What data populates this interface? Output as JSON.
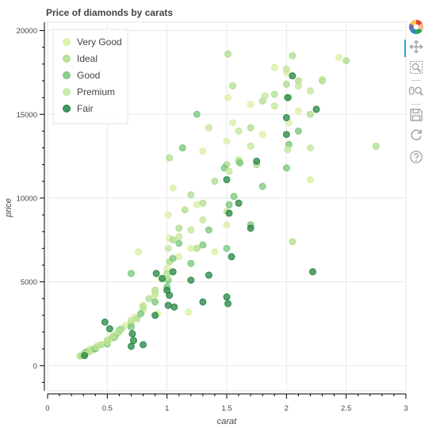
{
  "chart_data": {
    "type": "scatter",
    "title": "Price of diamonds by carats",
    "xlabel": "carat",
    "ylabel": "price",
    "xlim": [
      0,
      3
    ],
    "ylim": [
      -1500,
      20500
    ],
    "x_ticks": [
      0,
      0.5,
      1,
      1.5,
      2,
      2.5,
      3
    ],
    "x_tick_labels": [
      "0",
      "0.5",
      "1",
      "1.5",
      "2",
      "2.5",
      "3"
    ],
    "y_ticks": [
      0,
      5000,
      10000,
      15000,
      20000
    ],
    "y_tick_labels": [
      "0",
      "5000",
      "10000",
      "15000",
      "20000"
    ],
    "grid": true,
    "legend_position": "top-left",
    "series": [
      {
        "name": "Very Good",
        "color": "#d9f0a3",
        "points": [
          [
            0.27,
            550
          ],
          [
            0.3,
            650
          ],
          [
            0.31,
            720
          ],
          [
            0.33,
            800
          ],
          [
            0.35,
            900
          ],
          [
            0.36,
            1000
          ],
          [
            0.4,
            1050
          ],
          [
            0.42,
            1200
          ],
          [
            0.5,
            1450
          ],
          [
            0.52,
            1600
          ],
          [
            0.55,
            1800
          ],
          [
            0.6,
            2000
          ],
          [
            0.65,
            2400
          ],
          [
            0.7,
            2600
          ],
          [
            0.73,
            2900
          ],
          [
            0.76,
            6800
          ],
          [
            0.8,
            3300
          ],
          [
            0.9,
            4200
          ],
          [
            0.95,
            5200
          ],
          [
            1.0,
            5800
          ],
          [
            1.01,
            9000
          ],
          [
            1.05,
            10600
          ],
          [
            1.1,
            6500
          ],
          [
            1.2,
            7000
          ],
          [
            1.25,
            9600
          ],
          [
            1.3,
            12800
          ],
          [
            1.4,
            6800
          ],
          [
            1.5,
            13400
          ],
          [
            1.51,
            16000
          ],
          [
            1.55,
            14500
          ],
          [
            1.6,
            12300
          ],
          [
            1.7,
            15600
          ],
          [
            1.8,
            13800
          ],
          [
            1.9,
            17800
          ],
          [
            2.0,
            17500
          ],
          [
            2.02,
            14500
          ],
          [
            2.1,
            15200
          ],
          [
            2.2,
            11100
          ],
          [
            2.3,
            17100
          ],
          [
            2.44,
            18400
          ],
          [
            1.5,
            8400
          ],
          [
            1.02,
            7600
          ],
          [
            0.92,
            3100
          ],
          [
            1.18,
            3200
          ]
        ]
      },
      {
        "name": "Ideal",
        "color": "#addd8e",
        "points": [
          [
            0.28,
            600
          ],
          [
            0.3,
            700
          ],
          [
            0.32,
            760
          ],
          [
            0.34,
            850
          ],
          [
            0.38,
            950
          ],
          [
            0.41,
            1100
          ],
          [
            0.45,
            1250
          ],
          [
            0.5,
            1500
          ],
          [
            0.54,
            1650
          ],
          [
            0.58,
            1900
          ],
          [
            0.62,
            2200
          ],
          [
            0.7,
            2500
          ],
          [
            0.75,
            2800
          ],
          [
            0.8,
            3500
          ],
          [
            0.85,
            4000
          ],
          [
            0.9,
            4500
          ],
          [
            1.0,
            5500
          ],
          [
            1.02,
            6200
          ],
          [
            1.05,
            7500
          ],
          [
            1.1,
            8200
          ],
          [
            1.15,
            9300
          ],
          [
            1.2,
            10200
          ],
          [
            1.3,
            9700
          ],
          [
            1.4,
            11000
          ],
          [
            1.5,
            12000
          ],
          [
            1.51,
            18600
          ],
          [
            1.55,
            16700
          ],
          [
            1.6,
            12200
          ],
          [
            1.7,
            14200
          ],
          [
            1.8,
            15800
          ],
          [
            1.9,
            16200
          ],
          [
            2.0,
            16800
          ],
          [
            2.05,
            18500
          ],
          [
            2.1,
            17000
          ],
          [
            2.2,
            15000
          ],
          [
            2.3,
            17000
          ],
          [
            2.5,
            18200
          ],
          [
            2.75,
            13100
          ],
          [
            2.05,
            7400
          ],
          [
            1.75,
            12000
          ],
          [
            1.02,
            12400
          ],
          [
            1.25,
            7000
          ]
        ]
      },
      {
        "name": "Good",
        "color": "#78c679",
        "points": [
          [
            0.3,
            650
          ],
          [
            0.32,
            800
          ],
          [
            0.4,
            1000
          ],
          [
            0.5,
            1300
          ],
          [
            0.56,
            1700
          ],
          [
            0.6,
            2100
          ],
          [
            0.7,
            2300
          ],
          [
            0.7,
            5500
          ],
          [
            0.78,
            3100
          ],
          [
            0.9,
            3800
          ],
          [
            1.0,
            4700
          ],
          [
            1.01,
            5100
          ],
          [
            1.05,
            6400
          ],
          [
            1.1,
            7300
          ],
          [
            1.2,
            6100
          ],
          [
            1.3,
            7200
          ],
          [
            1.35,
            8100
          ],
          [
            1.5,
            7000
          ],
          [
            1.52,
            9600
          ],
          [
            1.56,
            10100
          ],
          [
            1.7,
            8400
          ],
          [
            1.8,
            10700
          ],
          [
            2.0,
            11800
          ],
          [
            2.02,
            13200
          ],
          [
            2.1,
            14000
          ],
          [
            1.25,
            15000
          ],
          [
            1.13,
            13000
          ],
          [
            1.48,
            11800
          ],
          [
            1.61,
            12100
          ]
        ]
      },
      {
        "name": "Premium",
        "color": "#c2e699",
        "points": [
          [
            0.3,
            680
          ],
          [
            0.35,
            820
          ],
          [
            0.41,
            1100
          ],
          [
            0.5,
            1400
          ],
          [
            0.55,
            1750
          ],
          [
            0.6,
            2050
          ],
          [
            0.7,
            2700
          ],
          [
            0.8,
            3600
          ],
          [
            0.9,
            4300
          ],
          [
            1.0,
            5300
          ],
          [
            1.01,
            7000
          ],
          [
            1.1,
            7700
          ],
          [
            1.2,
            8100
          ],
          [
            1.3,
            8700
          ],
          [
            1.5,
            9200
          ],
          [
            1.52,
            11600
          ],
          [
            1.6,
            14000
          ],
          [
            1.7,
            13100
          ],
          [
            1.82,
            16100
          ],
          [
            2.0,
            17700
          ],
          [
            2.01,
            12900
          ],
          [
            2.1,
            16700
          ],
          [
            2.2,
            16400
          ],
          [
            2.2,
            13000
          ],
          [
            2.02,
            16000
          ],
          [
            1.9,
            15500
          ],
          [
            1.35,
            14200
          ]
        ]
      },
      {
        "name": "Fair",
        "color": "#238443",
        "points": [
          [
            0.31,
            600
          ],
          [
            0.48,
            2600
          ],
          [
            0.52,
            2200
          ],
          [
            0.71,
            1900
          ],
          [
            0.72,
            1500
          ],
          [
            0.7,
            1150
          ],
          [
            0.8,
            1250
          ],
          [
            0.9,
            3000
          ],
          [
            0.91,
            5500
          ],
          [
            0.96,
            5200
          ],
          [
            1.0,
            4500
          ],
          [
            1.01,
            3600
          ],
          [
            1.02,
            4200
          ],
          [
            1.05,
            5600
          ],
          [
            1.2,
            5100
          ],
          [
            1.3,
            3800
          ],
          [
            1.35,
            5400
          ],
          [
            1.5,
            4100
          ],
          [
            1.51,
            3700
          ],
          [
            1.5,
            11100
          ],
          [
            1.52,
            9100
          ],
          [
            1.54,
            6500
          ],
          [
            1.6,
            9700
          ],
          [
            1.7,
            8200
          ],
          [
            1.75,
            12200
          ],
          [
            2.0,
            14800
          ],
          [
            2.0,
            13800
          ],
          [
            2.01,
            16000
          ],
          [
            2.05,
            17300
          ],
          [
            2.25,
            15300
          ],
          [
            2.22,
            5600
          ],
          [
            1.06,
            3500
          ]
        ]
      }
    ]
  },
  "toolbar": {
    "tools": [
      "bokeh-logo-icon",
      "pan-icon",
      "box-zoom-icon",
      "wheel-zoom-icon",
      "save-icon",
      "reset-icon",
      "help-icon"
    ]
  }
}
